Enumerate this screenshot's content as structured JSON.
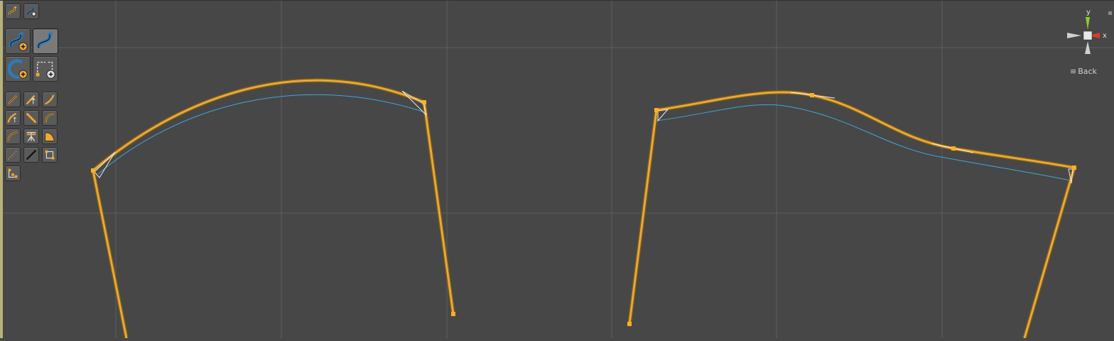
{
  "scene": {
    "background": "#474747",
    "grid_color": "#5e5e5e",
    "spline_color": "#e8a93a",
    "guide_color": "#3fa6d8",
    "point_color": "#ffb020"
  },
  "toolbar": {
    "top_row": [
      {
        "name": "spline-mode-icon"
      },
      {
        "name": "spline-edit-icon"
      }
    ],
    "large_tools": [
      {
        "name": "add-spline-icon"
      },
      {
        "name": "select-spline-icon"
      },
      {
        "name": "add-circle-spline-icon"
      },
      {
        "name": "add-rect-spline-icon"
      }
    ],
    "small_tools": [
      {
        "name": "tangent-tool-icon"
      },
      {
        "name": "tangent-up-tool-icon"
      },
      {
        "name": "curve-tool-icon"
      },
      {
        "name": "vertical-tool-icon"
      },
      {
        "name": "linear-tool-icon"
      },
      {
        "name": "arc-tool-icon"
      },
      {
        "name": "bend-tool-icon"
      },
      {
        "name": "split-tool-icon"
      },
      {
        "name": "fill-tool-icon"
      },
      {
        "name": "dotted-line-icon"
      },
      {
        "name": "straight-line-icon"
      },
      {
        "name": "bounding-box-icon"
      },
      {
        "name": "pivot-tool-icon"
      }
    ]
  },
  "gizmo": {
    "y_label": "y",
    "x_label": "x",
    "colors": {
      "y": "#8ccc2a",
      "x": "#e03a2a",
      "center": "#e0e0e0"
    }
  },
  "view": {
    "back_label": "Back",
    "menu_glyph": "≡"
  }
}
